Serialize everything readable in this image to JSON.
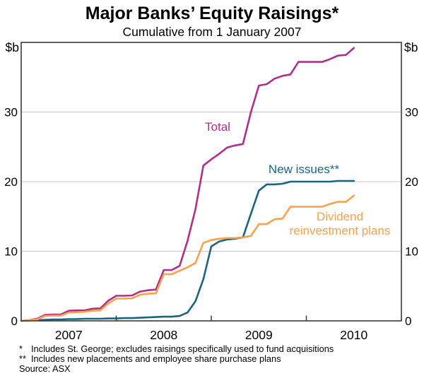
{
  "header": {
    "title": "Major Banks’ Equity Raisings*",
    "subtitle": "Cumulative from 1 January 2007"
  },
  "axes": {
    "unit_left": "$b",
    "unit_right": "$b"
  },
  "labels": {
    "total": "Total",
    "new_issues": "New issues**",
    "drp_line1": "Dividend",
    "drp_line2": "reinvestment plans"
  },
  "footnotes": [
    {
      "marker": "*",
      "text": "Includes St. George; excludes raisings specifically used to fund acquisitions"
    },
    {
      "marker": "**",
      "text": "Includes new placements and employee share purchase plans"
    }
  ],
  "source": "Source: ASX",
  "colors": {
    "total": "#b02f8d",
    "new_issues": "#1a6480",
    "drp": "#f9a14f",
    "grid": "#c9c9c9",
    "frame": "#3a3a3a"
  },
  "chart_data": {
    "type": "line",
    "title": "Major Banks’ Equity Raisings*",
    "subtitle": "Cumulative from 1 January 2007",
    "xlabel": "",
    "ylabel": "$b",
    "ylim": [
      0,
      40
    ],
    "yticks": [
      0,
      10,
      20,
      30
    ],
    "xlim": [
      2007,
      2011
    ],
    "xtick_boundaries": [
      2008,
      2009,
      2010
    ],
    "xtick_labels": [
      "2007",
      "2008",
      "2009",
      "2010"
    ],
    "xtick_label_centers": [
      2007.5,
      2008.5,
      2009.5,
      2010.5
    ],
    "grid": true,
    "legend_position": "inline-labels",
    "x": [
      2007.0,
      2007.083,
      2007.167,
      2007.25,
      2007.333,
      2007.417,
      2007.5,
      2007.583,
      2007.667,
      2007.75,
      2007.833,
      2007.917,
      2008.0,
      2008.083,
      2008.167,
      2008.25,
      2008.333,
      2008.417,
      2008.5,
      2008.583,
      2008.667,
      2008.75,
      2008.833,
      2008.917,
      2009.0,
      2009.083,
      2009.167,
      2009.25,
      2009.333,
      2009.417,
      2009.5,
      2009.583,
      2009.667,
      2009.75,
      2009.833,
      2009.917,
      2010.0,
      2010.083,
      2010.167,
      2010.25,
      2010.333,
      2010.417,
      2010.5
    ],
    "series": [
      {
        "name": "Total",
        "color": "#b02f8d",
        "values": [
          0,
          0.1,
          0.3,
          0.85,
          0.9,
          0.9,
          1.45,
          1.5,
          1.5,
          1.75,
          1.8,
          2.9,
          3.6,
          3.6,
          3.65,
          4.2,
          4.4,
          4.5,
          7.3,
          7.3,
          7.9,
          11.5,
          16,
          22.3,
          23.2,
          24,
          24.9,
          25.2,
          25.4,
          30,
          33.8,
          34,
          34.8,
          35.2,
          35.4,
          37.2,
          37.2,
          37.2,
          37.2,
          37.6,
          38.1,
          38.2,
          39.2
        ]
      },
      {
        "name": "New issues**",
        "color": "#1a6480",
        "values": [
          0,
          0.05,
          0.1,
          0.15,
          0.2,
          0.2,
          0.25,
          0.25,
          0.3,
          0.3,
          0.3,
          0.35,
          0.35,
          0.4,
          0.4,
          0.45,
          0.5,
          0.55,
          0.6,
          0.6,
          0.7,
          1.2,
          2.8,
          6,
          10.7,
          11.4,
          11.7,
          11.8,
          12,
          15.4,
          18.7,
          19.6,
          19.6,
          19.7,
          20,
          20,
          20,
          20,
          20,
          20,
          20.1,
          20.1,
          20.1
        ]
      },
      {
        "name": "Dividend reinvestment plans",
        "color": "#f9a14f",
        "values": [
          0,
          0.1,
          0.2,
          0.7,
          0.75,
          0.75,
          1.2,
          1.25,
          1.3,
          1.45,
          1.5,
          2.5,
          3.2,
          3.2,
          3.25,
          3.75,
          3.9,
          3.95,
          6.7,
          6.7,
          7.2,
          7.7,
          8.3,
          11.2,
          11.6,
          11.8,
          11.9,
          11.9,
          12,
          12.2,
          13.9,
          13.9,
          14.6,
          14.7,
          16.4,
          16.4,
          16.4,
          16.4,
          16.4,
          16.8,
          17.1,
          17.1,
          18
        ]
      }
    ]
  }
}
